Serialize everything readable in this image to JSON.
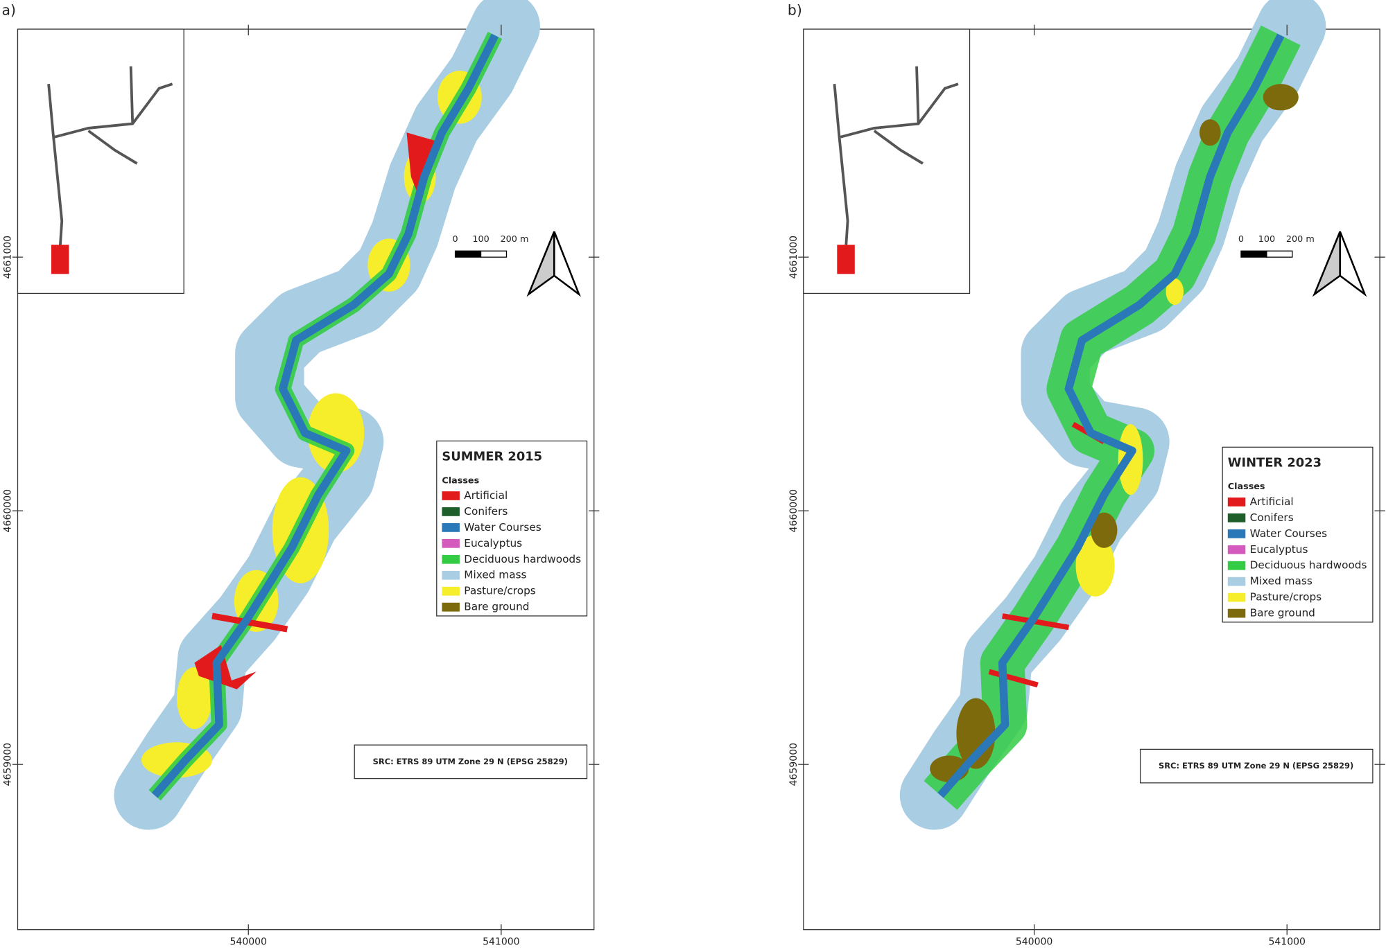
{
  "panels": [
    {
      "label": "a)",
      "title": "SUMMER 2015",
      "legend_heading": "Classes",
      "classes": [
        {
          "label": "Artificial",
          "color": "#e31a1c"
        },
        {
          "label": "Conifers",
          "color": "#1e5e2a"
        },
        {
          "label": "Water Courses",
          "color": "#2b78b8"
        },
        {
          "label": "Eucalyptus",
          "color": "#d45bbd"
        },
        {
          "label": "Deciduous hardwoods",
          "color": "#33cc44"
        },
        {
          "label": "Mixed mass",
          "color": "#a9cde3"
        },
        {
          "label": "Pasture/crops",
          "color": "#f7ee2b"
        },
        {
          "label": "Bare ground",
          "color": "#7d6a0c"
        }
      ],
      "x_ticks": [
        "540000",
        "541000"
      ],
      "y_ticks": [
        "4661000",
        "4660000",
        "4659000"
      ],
      "scale_bar": [
        "0",
        "100",
        "200 m"
      ],
      "crs": "SRC: ETRS 89 UTM Zone 29 N (EPSG 25829)"
    },
    {
      "label": "b)",
      "title": "WINTER 2023",
      "legend_heading": "Classes",
      "classes": [
        {
          "label": "Artificial",
          "color": "#e31a1c"
        },
        {
          "label": "Conifers",
          "color": "#1e5e2a"
        },
        {
          "label": "Water Courses",
          "color": "#2b78b8"
        },
        {
          "label": "Eucalyptus",
          "color": "#d45bbd"
        },
        {
          "label": "Deciduous hardwoods",
          "color": "#33cc44"
        },
        {
          "label": "Mixed mass",
          "color": "#a9cde3"
        },
        {
          "label": "Pasture/crops",
          "color": "#f7ee2b"
        },
        {
          "label": "Bare ground",
          "color": "#7d6a0c"
        }
      ],
      "x_ticks": [
        "540000",
        "541000"
      ],
      "y_ticks": [
        "4661000",
        "4660000",
        "4659000"
      ],
      "scale_bar": [
        "0",
        "100",
        "200 m"
      ],
      "crs": "SRC: ETRS 89 UTM Zone 29 N (EPSG 25829)"
    }
  ]
}
